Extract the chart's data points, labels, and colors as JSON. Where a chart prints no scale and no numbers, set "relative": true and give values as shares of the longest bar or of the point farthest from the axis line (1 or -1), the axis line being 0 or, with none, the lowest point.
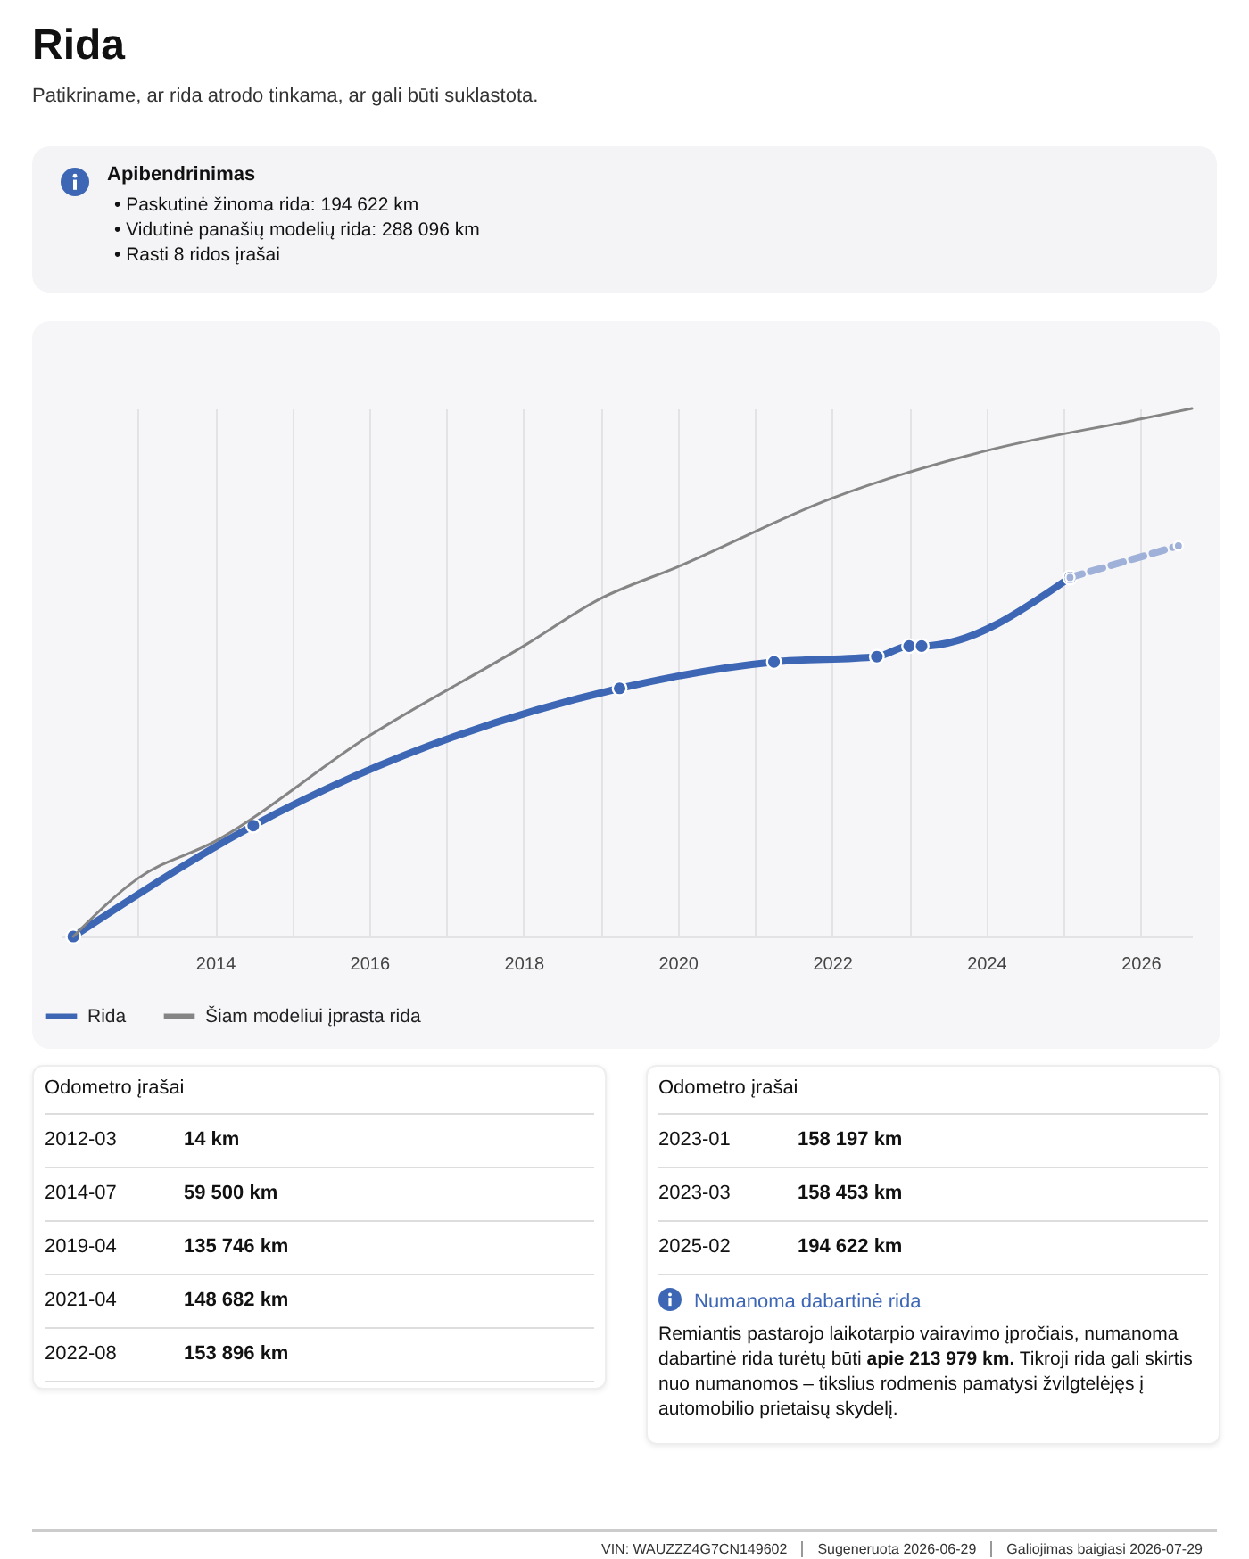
{
  "chart_data": {
    "type": "line",
    "title": "Rida",
    "subtitle": "Patikriname, ar rida atrodo tinkama, ar gali būti suklastota.",
    "annotations": [
      "Apibendrinimas",
      "• Paskutinė žinoma rida: 194 622 km",
      "• Vidutinė panašių modelių rida: 288 096 km",
      "• Rasti 8 ridos įrašai",
      "Odometro įrašai",
      "2012-03",
      "14 km",
      "2014-07",
      "59 500 km",
      "2019-04",
      "135 746 km",
      "2021-04",
      "148 682 km",
      "2022-08",
      "153 896 km",
      "Odometro įrašai",
      "2023-01",
      "158 197 km",
      "2023-03",
      "158 453 km",
      "2025-02",
      "194 622 km",
      "Numanoma dabartinė rida",
      "Remiantis pastarojo laikotarpio vairavimo įpročiais, numanoma dabartinė rida turėtų būti",
      "apie 213 979 km.",
      "Tikroji rida gali skirtis nuo numanomos – tikslius rodmenis pamatysi žvilgtelėjęs į automobilio prietaisų skydelį.",
      "VIN: WAUZZZ4G7CN149602",
      "Sugeneruota 2026-06-29",
      "Galiojimas baigiasi 2026-07-29"
    ],
    "xlim": [
      "2012-01",
      "2026-09"
    ],
    "xticks": [
      {
        "value": "2013",
        "label": null
      },
      "2014",
      {
        "value": "2015",
        "label": null
      },
      "2016",
      {
        "value": "2017",
        "label": null
      },
      "2018",
      {
        "value": "2019",
        "label": null
      },
      "2020",
      {
        "value": "2021",
        "label": null
      },
      "2022",
      {
        "value": "2023",
        "label": null
      },
      "2024",
      {
        "value": "2025",
        "label": null
      },
      "2026"
    ],
    "relative": true,
    "tick_labels": "x",
    "grid": "x",
    "legend": "bottom",
    "series": [
      {
        "name": "Rida",
        "color": "#3d67b5",
        "marker": "circle",
        "x": [
          "2012-03",
          "2014-07",
          "2019-04",
          "2021-04",
          "2022-08",
          "2023-01",
          "2023-03",
          "2025-02"
        ],
        "values": [
          0.0,
          0.21,
          0.47,
          0.52,
          0.53,
          0.55,
          0.55,
          0.68
        ]
      },
      {
        "color": "#9fb1d8",
        "marker": "circle",
        "line_style": "dashed",
        "x": [
          "2025-02",
          "2026-06-29"
        ],
        "values": [
          0.68,
          0.74
        ]
      },
      {
        "name": "Šiam modeliui įprasta rida",
        "color": "#858585",
        "marker": "none",
        "x": [
          "2012-03",
          "2013",
          "2014",
          "2016",
          "2018",
          "2019",
          "2020",
          "2022",
          "2024",
          "2026",
          "2026-09"
        ],
        "values": [
          0.0,
          0.11,
          0.18,
          0.38,
          0.55,
          0.64,
          0.7,
          0.83,
          0.92,
          0.98,
          1.0
        ]
      }
    ]
  }
}
